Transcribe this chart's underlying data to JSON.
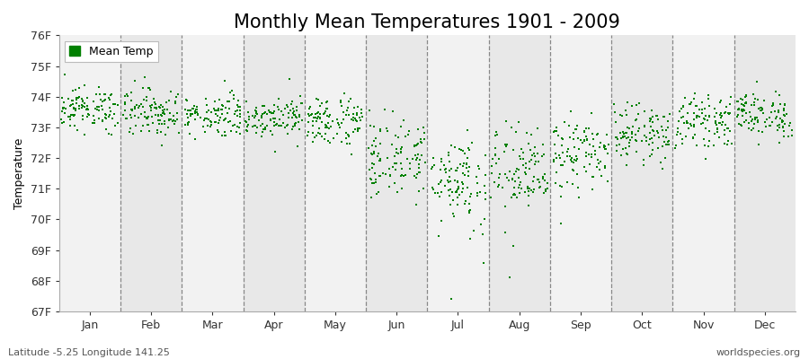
{
  "title": "Monthly Mean Temperatures 1901 - 2009",
  "ylabel": "Temperature",
  "xlabel": "",
  "ylim": [
    67,
    76
  ],
  "yticks": [
    67,
    68,
    69,
    70,
    71,
    72,
    73,
    74,
    75,
    76
  ],
  "ytick_labels": [
    "67F",
    "68F",
    "69F",
    "70F",
    "71F",
    "72F",
    "73F",
    "74F",
    "75F",
    "76F"
  ],
  "months": [
    "Jan",
    "Feb",
    "Mar",
    "Apr",
    "May",
    "Jun",
    "Jul",
    "Aug",
    "Sep",
    "Oct",
    "Nov",
    "Dec"
  ],
  "dot_color": "#008000",
  "bg_color1": "#f2f2f2",
  "bg_color2": "#e8e8e8",
  "legend_label": "Mean Temp",
  "footer_left": "Latitude -5.25 Longitude 141.25",
  "footer_right": "worldspecies.org",
  "n_years": 109,
  "monthly_means": [
    73.6,
    73.5,
    73.4,
    73.35,
    73.2,
    72.0,
    71.3,
    71.5,
    72.1,
    72.8,
    73.2,
    73.4
  ],
  "monthly_stds": [
    0.35,
    0.4,
    0.35,
    0.32,
    0.42,
    0.65,
    0.8,
    0.75,
    0.6,
    0.45,
    0.4,
    0.38
  ],
  "title_fontsize": 15,
  "axis_label_fontsize": 9,
  "tick_fontsize": 9,
  "footer_fontsize": 8
}
